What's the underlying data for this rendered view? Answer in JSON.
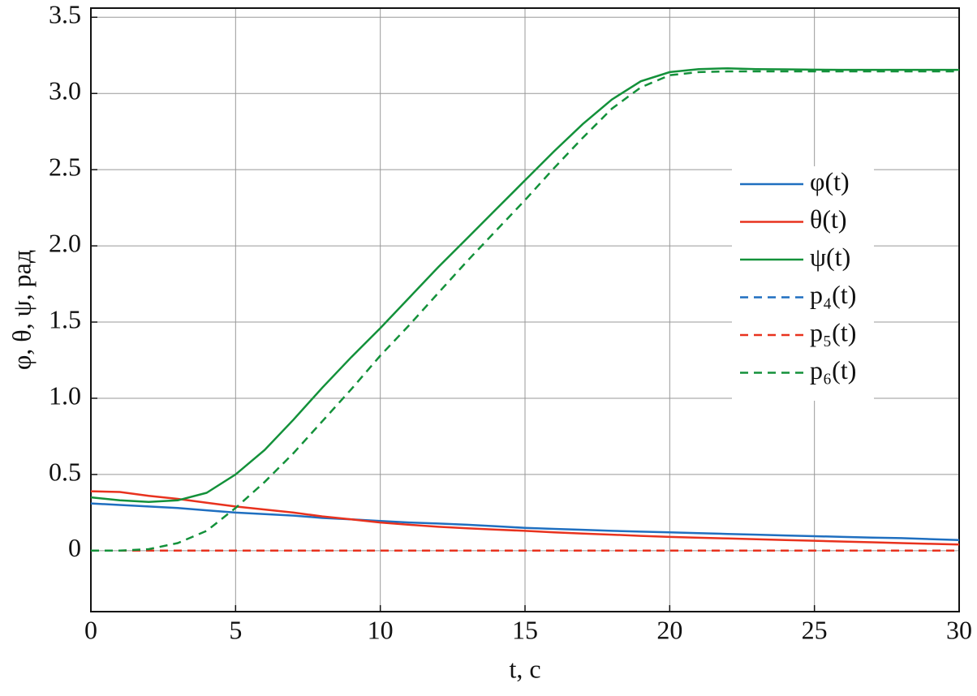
{
  "chart_data": {
    "type": "line",
    "xlabel": "t, с",
    "ylabel": "φ, θ, ψ, рад",
    "x": [
      0,
      1,
      2,
      3,
      4,
      5,
      6,
      7,
      8,
      9,
      10,
      11,
      12,
      13,
      14,
      15,
      16,
      17,
      18,
      19,
      20,
      21,
      22,
      23,
      24,
      25,
      26,
      27,
      28,
      29,
      30
    ],
    "series": [
      {
        "name": "φ(t)",
        "color": "#1f6fc0",
        "dash": false,
        "values": [
          0.31,
          0.3,
          0.29,
          0.28,
          0.265,
          0.25,
          0.24,
          0.23,
          0.215,
          0.205,
          0.195,
          0.185,
          0.178,
          0.17,
          0.16,
          0.15,
          0.143,
          0.137,
          0.13,
          0.125,
          0.12,
          0.115,
          0.11,
          0.105,
          0.1,
          0.095,
          0.09,
          0.086,
          0.082,
          0.076,
          0.07
        ]
      },
      {
        "name": "θ(t)",
        "color": "#e8321e",
        "dash": false,
        "values": [
          0.39,
          0.385,
          0.36,
          0.34,
          0.315,
          0.29,
          0.27,
          0.25,
          0.225,
          0.205,
          0.185,
          0.17,
          0.157,
          0.147,
          0.138,
          0.13,
          0.12,
          0.112,
          0.105,
          0.097,
          0.09,
          0.085,
          0.08,
          0.075,
          0.07,
          0.065,
          0.06,
          0.055,
          0.05,
          0.045,
          0.04
        ]
      },
      {
        "name": "ψ(t)",
        "color": "#13913a",
        "dash": false,
        "values": [
          0.35,
          0.33,
          0.32,
          0.33,
          0.38,
          0.5,
          0.66,
          0.86,
          1.07,
          1.27,
          1.46,
          1.66,
          1.86,
          2.05,
          2.24,
          2.43,
          2.62,
          2.8,
          2.96,
          3.08,
          3.14,
          3.16,
          3.165,
          3.16,
          3.158,
          3.156,
          3.155,
          3.155,
          3.155,
          3.155,
          3.155
        ]
      },
      {
        "name": "p₄(t)",
        "color": "#1f6fc0",
        "dash": true,
        "values": [
          0,
          0,
          0,
          0,
          0,
          0,
          0,
          0,
          0,
          0,
          0,
          0,
          0,
          0,
          0,
          0,
          0,
          0,
          0,
          0,
          0,
          0,
          0,
          0,
          0,
          0,
          0,
          0,
          0,
          0,
          0
        ]
      },
      {
        "name": "p₅(t)",
        "color": "#e8321e",
        "dash": true,
        "values": [
          0,
          0,
          0,
          0,
          0,
          0,
          0,
          0,
          0,
          0,
          0,
          0,
          0,
          0,
          0,
          0,
          0,
          0,
          0,
          0,
          0,
          0,
          0,
          0,
          0,
          0,
          0,
          0,
          0,
          0,
          0
        ]
      },
      {
        "name": "p₆(t)",
        "color": "#13913a",
        "dash": true,
        "values": [
          0,
          0,
          0.01,
          0.05,
          0.13,
          0.28,
          0.45,
          0.64,
          0.85,
          1.06,
          1.28,
          1.48,
          1.69,
          1.9,
          2.1,
          2.3,
          2.51,
          2.71,
          2.9,
          3.04,
          3.12,
          3.14,
          3.145,
          3.145,
          3.145,
          3.145,
          3.145,
          3.145,
          3.145,
          3.145,
          3.145
        ]
      }
    ],
    "xlim": [
      0,
      30
    ],
    "xticks": [
      0,
      5,
      10,
      15,
      20,
      25,
      30
    ],
    "ylim": [
      -0.4,
      3.56
    ],
    "yticks": [
      0,
      0.5,
      {
        "value": 1,
        "label": "1.0"
      },
      1.5,
      {
        "value": 2,
        "label": "2.0"
      },
      2.5,
      {
        "value": 3,
        "label": "3.0"
      },
      3.5
    ],
    "grid": true,
    "legend": "right"
  }
}
